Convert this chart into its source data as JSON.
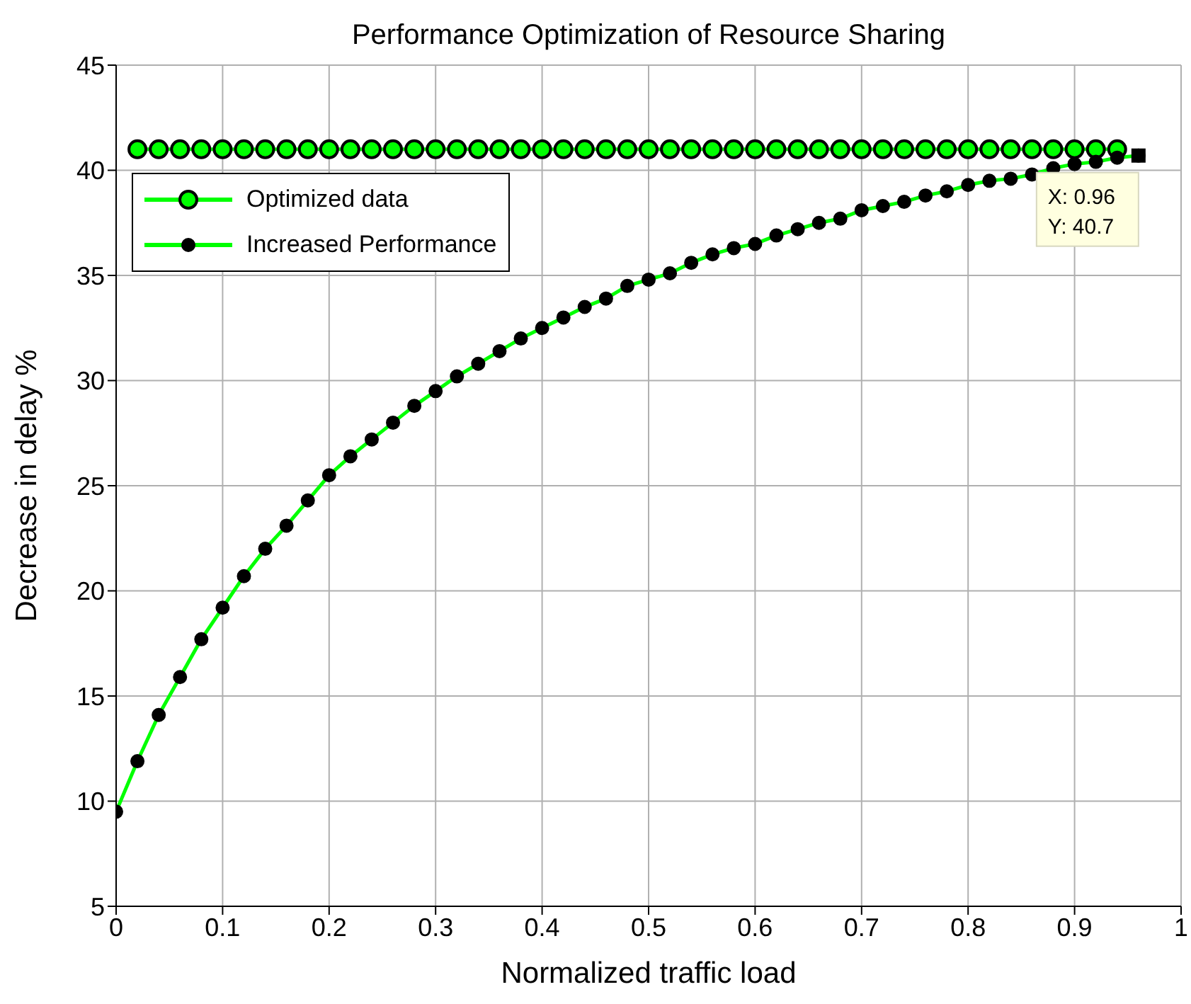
{
  "chart_data": {
    "type": "line",
    "title": "Performance Optimization of Resource Sharing",
    "xlabel": "Normalized traffic load",
    "ylabel": "Decrease in delay %",
    "xlim": [
      0,
      1
    ],
    "xticks": [
      0,
      0.1,
      0.2,
      0.3,
      0.4,
      0.5,
      0.6,
      0.7,
      0.8,
      0.9,
      1
    ],
    "ylim": [
      5,
      45
    ],
    "yticks": [
      5,
      10,
      15,
      20,
      25,
      30,
      35,
      40,
      45
    ],
    "grid": true,
    "legend": "top left",
    "marker": "circle",
    "line_style": "solid",
    "series": [
      {
        "name": "Optimized data",
        "color": "#00ff00",
        "x": [
          0.02,
          0.04,
          0.06,
          0.08,
          0.1,
          0.12,
          0.14,
          0.16,
          0.18,
          0.2,
          0.22,
          0.24,
          0.26,
          0.28,
          0.3,
          0.32,
          0.34,
          0.36,
          0.38,
          0.4,
          0.42,
          0.44,
          0.46,
          0.48,
          0.5,
          0.52,
          0.54,
          0.56,
          0.58,
          0.6,
          0.62,
          0.64,
          0.66,
          0.68,
          0.7,
          0.72,
          0.74,
          0.76,
          0.78,
          0.8,
          0.82,
          0.84,
          0.86,
          0.88,
          0.9,
          0.92,
          0.94
        ],
        "values": [
          41,
          41,
          41,
          41,
          41,
          41,
          41,
          41,
          41,
          41,
          41,
          41,
          41,
          41,
          41,
          41,
          41,
          41,
          41,
          41,
          41,
          41,
          41,
          41,
          41,
          41,
          41,
          41,
          41,
          41,
          41,
          41,
          41,
          41,
          41,
          41,
          41,
          41,
          41,
          41,
          41,
          41,
          41,
          41,
          41,
          41,
          41
        ]
      },
      {
        "name": "Increased Performance",
        "color": "#00ff00",
        "x": [
          0,
          0.02,
          0.04,
          0.06,
          0.08,
          0.1,
          0.12,
          0.14,
          0.16,
          0.18,
          0.2,
          0.22,
          0.24,
          0.26,
          0.28,
          0.3,
          0.32,
          0.34,
          0.36,
          0.38,
          0.4,
          0.42,
          0.44,
          0.46,
          0.48,
          0.5,
          0.52,
          0.54,
          0.56,
          0.58,
          0.6,
          0.62,
          0.64,
          0.66,
          0.68,
          0.7,
          0.72,
          0.74,
          0.76,
          0.78,
          0.8,
          0.82,
          0.84,
          0.86,
          0.88,
          0.9,
          0.92,
          0.94,
          0.96
        ],
        "values": [
          9.5,
          11.9,
          14.1,
          15.9,
          17.7,
          19.2,
          20.7,
          22.0,
          23.1,
          24.3,
          25.5,
          26.4,
          27.2,
          28.0,
          28.8,
          29.5,
          30.2,
          30.8,
          31.4,
          32.0,
          32.5,
          33.0,
          33.5,
          33.9,
          34.5,
          34.8,
          35.1,
          35.6,
          36.0,
          36.3,
          36.5,
          36.9,
          37.2,
          37.5,
          37.7,
          38.1,
          38.3,
          38.5,
          38.8,
          39.0,
          39.3,
          39.5,
          39.6,
          39.8,
          40.1,
          40.3,
          40.4,
          40.6,
          40.7
        ]
      }
    ],
    "annotations": [
      {
        "text": "X: 0.96\nY: 40.7",
        "x": 0.96,
        "y": 40.7
      }
    ]
  }
}
